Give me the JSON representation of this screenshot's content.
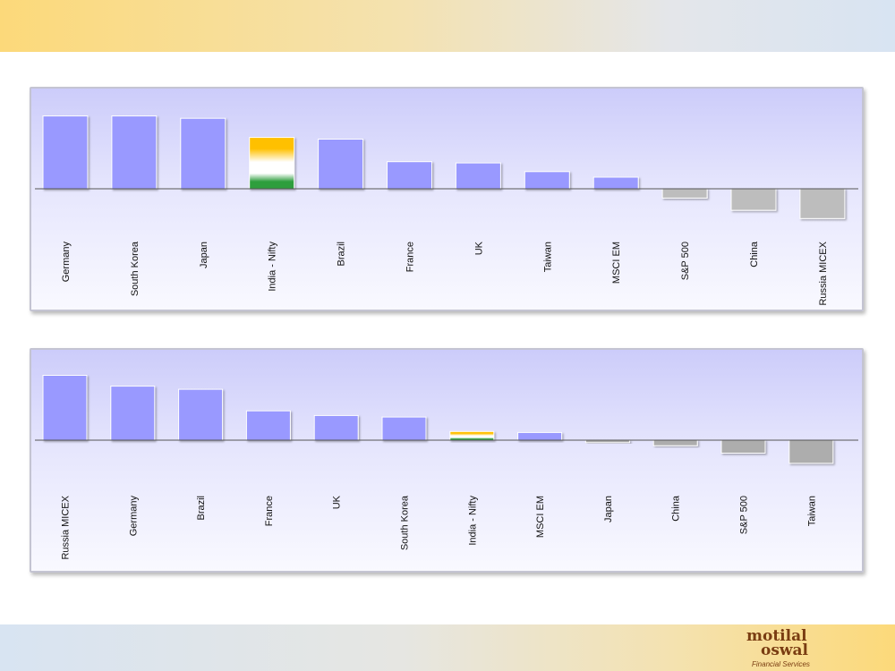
{
  "chart_data": [
    {
      "type": "bar",
      "categories": [
        "Germany",
        "South Korea",
        "Japan",
        "India - Nifty",
        "Brazil",
        "France",
        "UK",
        "Taiwan",
        "MSCI EM",
        "S&P 500",
        "China",
        "Russia MICEX"
      ],
      "values": [
        22,
        22,
        21.3,
        15.5,
        15,
        8.2,
        7.8,
        5.2,
        3.5,
        -2.8,
        -6.5,
        -9
      ],
      "highlight": "India - Nifty",
      "colors": {
        "positive": "#9999ff",
        "negative": "#bdbdbd",
        "highlight": [
          "#ffc000",
          "#ffffff",
          "#2e9e3e"
        ]
      }
    },
    {
      "type": "bar",
      "categories": [
        "Russia MICEX",
        "Germany",
        "Brazil",
        "France",
        "UK",
        "South Korea",
        "India - Nifty",
        "MSCI EM",
        "Japan",
        "China",
        "S&P 500",
        "Taiwan"
      ],
      "values": [
        21,
        17.5,
        16.5,
        9.5,
        8,
        7.5,
        2.8,
        2.5,
        -0.8,
        -1.8,
        -4.2,
        -7.5
      ],
      "highlight": "India - Nifty",
      "colors": {
        "positive": "#9999ff",
        "negative": "#adadad",
        "highlight": [
          "#ffc000",
          "#ffffff",
          "#2e9e3e"
        ]
      }
    }
  ],
  "logo": {
    "line1": "motilal",
    "line2": "oswal",
    "sub": "Financial Services"
  }
}
